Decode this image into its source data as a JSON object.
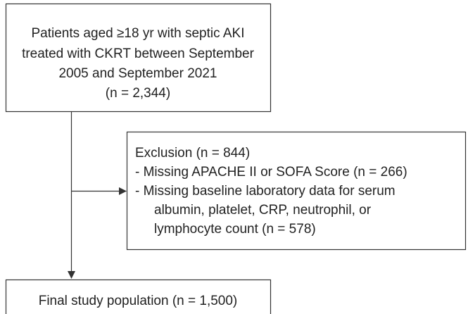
{
  "nodes": {
    "source": {
      "lines": [
        "Patients aged ≥18 yr with septic AKI",
        "treated with CKRT between September",
        "2005 and September 2021",
        "(n = 2,344)"
      ]
    },
    "exclusion": {
      "title": "Exclusion (n = 844)",
      "lines": [
        "- Missing APACHE II or SOFA Score (n = 266)",
        "- Missing baseline laboratory data for serum",
        "albumin, platelet, CRP, neutrophil, or",
        "lymphocyte count (n = 578)"
      ]
    },
    "final": {
      "lines": [
        "Final study population (n = 1,500)"
      ]
    }
  }
}
